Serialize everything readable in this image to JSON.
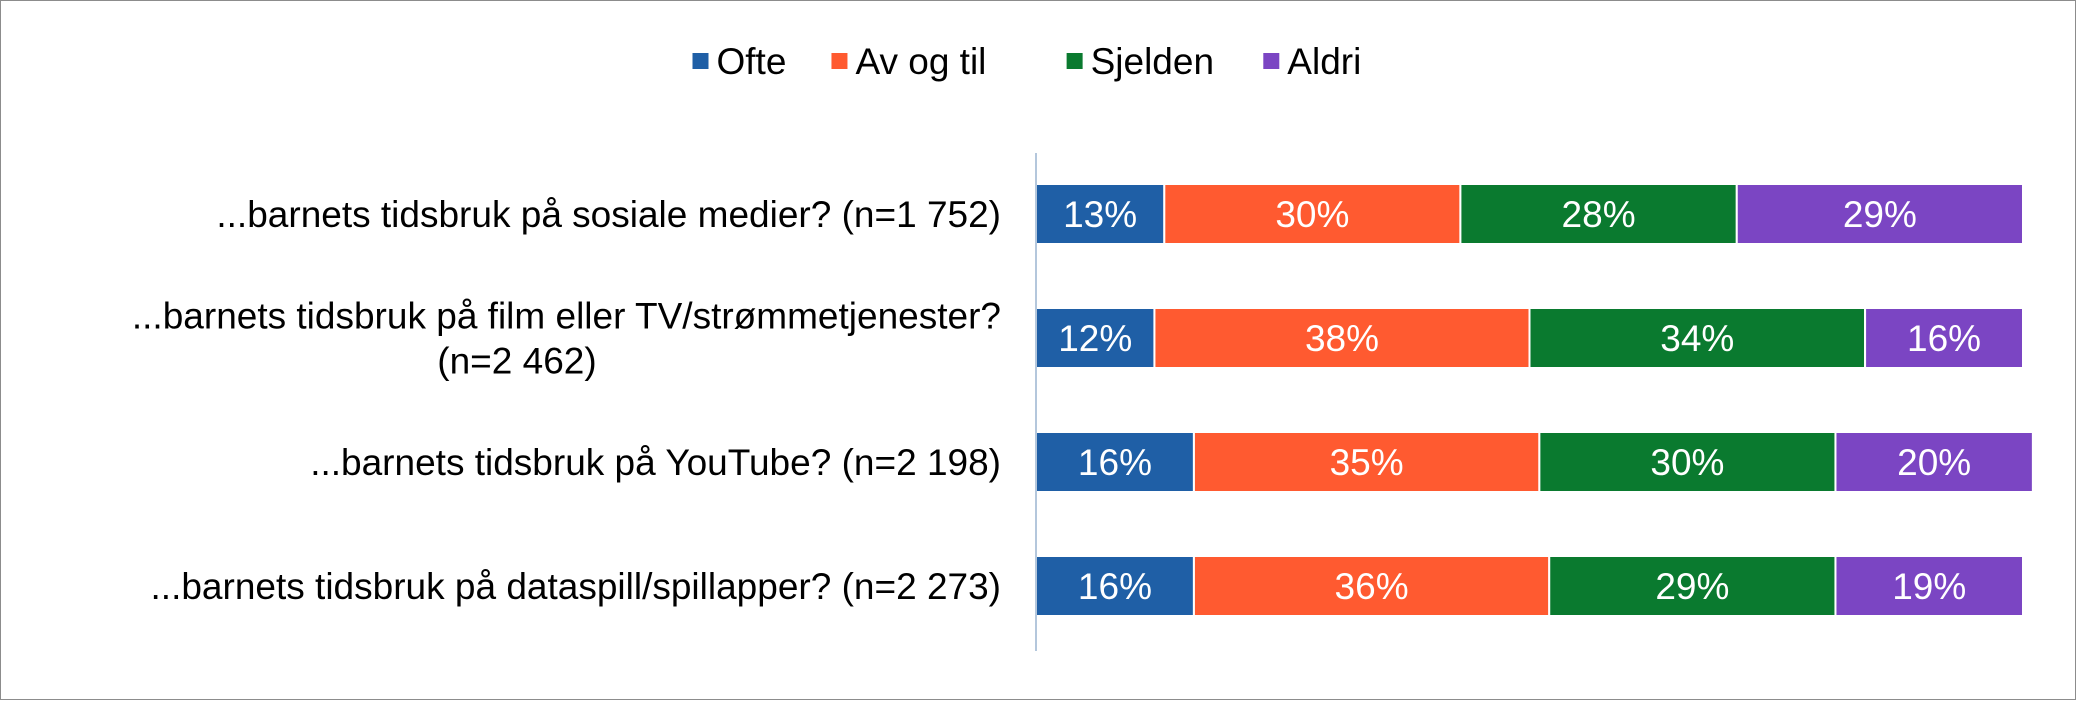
{
  "chart_data": {
    "type": "bar",
    "orientation": "horizontal",
    "stacked": true,
    "categories": [
      "...barnets tidsbruk på sosiale medier? (n=1 752)",
      "...barnets tidsbruk på film eller TV/strømmetjenester? (n=2 462)",
      "...barnets tidsbruk på YouTube? (n=2 198)",
      "...barnets tidsbruk på dataspill/spillapper? (n=2 273)"
    ],
    "category_lines": [
      [
        "...barnets tidsbruk på sosiale medier? (n=1 752)"
      ],
      [
        "...barnets tidsbruk på film eller TV/strømmetjenester?",
        "(n=2 462)"
      ],
      [
        "...barnets tidsbruk på YouTube? (n=2 198)"
      ],
      [
        "...barnets tidsbruk på dataspill/spillapper? (n=2 273)"
      ]
    ],
    "series": [
      {
        "name": "Ofte",
        "color": "#1f5fa6",
        "values": [
          13,
          12,
          16,
          16
        ],
        "labels": [
          "13%",
          "12%",
          "16%",
          "16%"
        ]
      },
      {
        "name": "Av og til",
        "color": "#ff5a30",
        "values": [
          30,
          38,
          35,
          36
        ],
        "labels": [
          "30%",
          "38%",
          "35%",
          "36%"
        ]
      },
      {
        "name": "Sjelden",
        "color": "#0a7a2f",
        "values": [
          28,
          34,
          30,
          29
        ],
        "labels": [
          "28%",
          "34%",
          "30%",
          "29%"
        ]
      },
      {
        "name": "Aldri",
        "color": "#7b45c3",
        "values": [
          29,
          16,
          20,
          19
        ],
        "labels": [
          "29%",
          "16%",
          "20%",
          "19%"
        ]
      }
    ],
    "xlim": [
      0,
      100
    ],
    "legend_position": "top",
    "grid": false,
    "axis_color": "#b4c7dc",
    "label_color": "#ffffff",
    "text_color": "#000000"
  }
}
